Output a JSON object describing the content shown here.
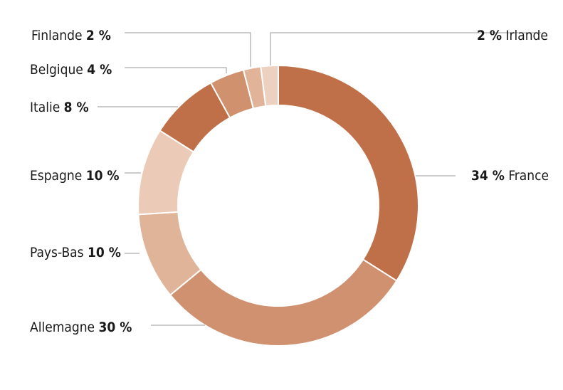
{
  "chart_data": {
    "type": "pie",
    "categories": [
      "France",
      "Allemagne",
      "Pays-Bas",
      "Espagne",
      "Italie",
      "Belgique",
      "Finlande",
      "Irlande"
    ],
    "values": [
      34,
      30,
      10,
      10,
      8,
      4,
      2,
      2
    ],
    "labels": [
      {
        "name": "France",
        "pct": "34 %"
      },
      {
        "name": "Allemagne",
        "pct": "30 %"
      },
      {
        "name": "Pays-Bas",
        "pct": "10 %"
      },
      {
        "name": "Espagne",
        "pct": "10 %"
      },
      {
        "name": "Italie",
        "pct": "8 %"
      },
      {
        "name": "Belgique",
        "pct": "4 %"
      },
      {
        "name": "Finlande",
        "pct": "2 %"
      },
      {
        "name": "Irlande",
        "pct": "2 %"
      }
    ],
    "colors": [
      "#c07048",
      "#cf9170",
      "#e0b498",
      "#ebcbb7",
      "#c07048",
      "#d0916e",
      "#e1b398",
      "#ecd0c0"
    ],
    "donut": true,
    "start": "top",
    "direction": "clockwise"
  }
}
